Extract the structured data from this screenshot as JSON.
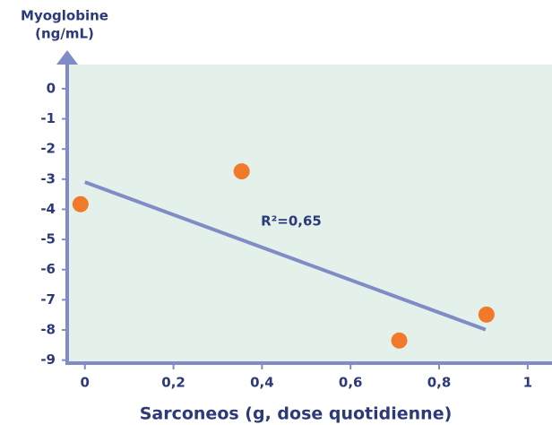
{
  "chart_data": {
    "type": "scatter",
    "ylabel": [
      "Myoglobine",
      "(ng/mL)"
    ],
    "xlabel": "Sarconeos (g, dose quotidienne)",
    "annotation": "R²=0,65",
    "x": [
      -0.01,
      0.354,
      0.71,
      0.907
    ],
    "values": [
      -3.83,
      -2.74,
      -8.35,
      -7.49
    ],
    "color": "#f07a2a",
    "trendline": {
      "x": [
        0,
        0.905
      ],
      "y": [
        -3.1,
        -7.99
      ],
      "color": "#7f8cc6"
    },
    "xlim": [
      -0.04,
      1.055
    ],
    "ylim": [
      -9.1,
      0.8
    ],
    "xticks": [
      0,
      {
        "value": 0.2,
        "label": "0,2"
      },
      {
        "value": 0.4,
        "label": "0,4"
      },
      {
        "value": 0.6,
        "label": "0,6"
      },
      {
        "value": 0.8,
        "label": "0,8"
      },
      1
    ],
    "yticks": [
      0,
      -1,
      -2,
      -3,
      -4,
      -5,
      -6,
      -7,
      -8,
      -9
    ],
    "background": "#e4f1ea",
    "axis_color": "#7f8cc6"
  }
}
